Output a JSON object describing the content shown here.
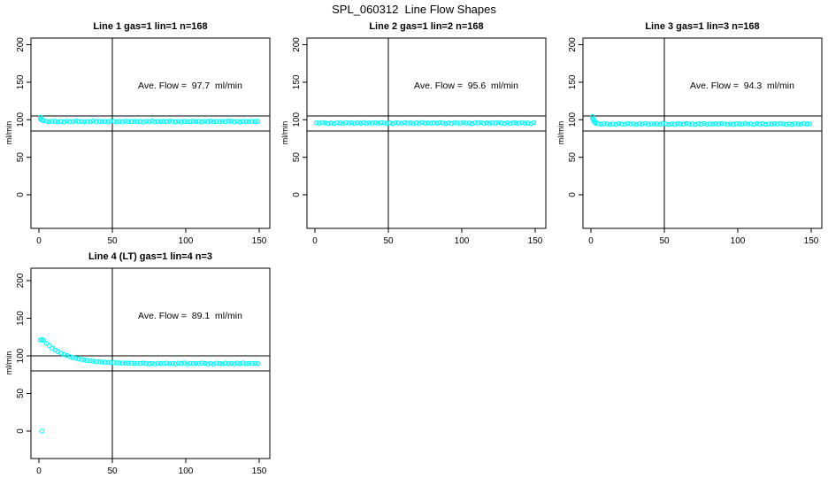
{
  "figure": {
    "title": "SPL_060312  Line Flow Shapes",
    "background_color": "#ffffff",
    "point_color": "#00ffff",
    "axis_color": "#000000",
    "marker": "open-circle"
  },
  "chart_data": {
    "type": "scatter",
    "title": "SPL_060312  Line Flow Shapes",
    "xlabel": "",
    "ylabel": "ml/min",
    "xticks": [
      0,
      50,
      100,
      150
    ],
    "yticks": [
      0,
      50,
      100,
      150,
      200
    ],
    "xlim": [
      0,
      155
    ],
    "ylim": [
      0,
      210
    ],
    "grid": false,
    "legend": false,
    "plots": [
      {
        "title": "Line 1 gas=1 lin=1 n=168",
        "annotation": "Ave. Flow =  97.7  ml/min",
        "ave_flow": 97.7,
        "vline_x": 50,
        "hlines": [
          105,
          85
        ],
        "points_head": [
          [
            1,
            103.4
          ],
          [
            1,
            100.9
          ],
          [
            2,
            99.6
          ],
          [
            3,
            98.6
          ]
        ],
        "series": {
          "x0": 5,
          "dx": 2,
          "y": [
            97.9,
            97.4,
            98.2,
            97.7,
            97.1,
            97.8,
            97.0,
            98.0,
            97.6,
            97.3,
            98.2,
            97.5,
            97.8,
            97.0,
            98.1,
            97.4,
            98.3,
            97.2,
            97.8,
            97.5,
            97.9,
            97.4,
            98.2,
            97.7,
            97.1,
            97.8,
            97.0,
            98.0,
            97.6,
            97.3,
            98.2,
            97.5,
            97.8,
            97.0,
            98.1,
            97.4,
            98.3,
            97.2,
            97.8,
            97.5,
            97.9,
            97.4,
            98.2,
            97.7,
            97.1,
            97.8,
            97.0,
            98.0,
            97.6,
            97.3,
            98.2,
            97.5,
            97.8,
            97.0,
            98.1,
            97.4,
            98.3,
            97.2,
            97.8,
            97.5,
            97.9,
            97.4,
            98.2,
            97.7,
            97.1,
            97.8,
            97.0,
            98.0,
            97.6,
            97.3,
            98.2,
            97.5,
            97.8
          ]
        }
      },
      {
        "title": "Line 2 gas=1 lin=2 n=168",
        "annotation": "Ave. Flow =  95.6  ml/min",
        "ave_flow": 95.6,
        "vline_x": 50,
        "hlines": [
          105,
          85
        ],
        "points_head": [],
        "series": {
          "x0": 1,
          "dx": 2,
          "y": [
            95.9,
            95.4,
            96.2,
            95.7,
            95.1,
            95.8,
            95.0,
            96.0,
            95.6,
            95.3,
            96.2,
            95.5,
            95.8,
            95.0,
            96.1,
            95.4,
            96.3,
            95.2,
            95.8,
            95.5,
            95.9,
            95.4,
            96.2,
            95.7,
            95.1,
            95.8,
            95.0,
            96.0,
            95.6,
            95.3,
            96.2,
            95.5,
            95.8,
            95.0,
            96.1,
            95.4,
            96.3,
            95.2,
            95.8,
            95.5,
            95.9,
            95.4,
            96.2,
            95.7,
            95.1,
            95.8,
            95.0,
            96.0,
            95.6,
            95.3,
            96.2,
            95.5,
            95.8,
            95.0,
            96.1,
            95.4,
            96.3,
            95.2,
            95.8,
            95.5,
            95.9,
            95.4,
            96.2,
            95.7,
            95.1,
            95.8,
            95.0,
            96.0,
            95.6,
            95.3,
            96.2,
            95.5,
            95.8,
            95.0,
            96.1
          ]
        }
      },
      {
        "title": "Line 3 gas=1 lin=3 n=168",
        "annotation": "Ave. Flow =  94.3  ml/min",
        "ave_flow": 94.3,
        "vline_x": 50,
        "hlines": [
          105,
          85
        ],
        "points_head": [
          [
            1,
            104.2
          ],
          [
            1,
            101.5
          ],
          [
            2,
            99.8
          ],
          [
            2,
            97.6
          ],
          [
            3,
            96.9
          ],
          [
            3,
            95.5
          ]
        ],
        "series": {
          "x0": 5,
          "dx": 2,
          "y": [
            94.6,
            94.1,
            94.9,
            94.4,
            93.8,
            94.5,
            93.7,
            94.7,
            94.3,
            94.0,
            94.9,
            94.2,
            94.5,
            93.7,
            94.8,
            94.1,
            95.0,
            93.9,
            94.5,
            94.2,
            94.6,
            94.1,
            94.9,
            94.4,
            93.8,
            94.5,
            93.7,
            94.7,
            94.3,
            94.0,
            94.9,
            94.2,
            94.5,
            93.7,
            94.8,
            94.1,
            95.0,
            93.9,
            94.5,
            94.2,
            94.6,
            94.1,
            94.9,
            94.4,
            93.8,
            94.5,
            93.7,
            94.7,
            94.3,
            94.0,
            94.9,
            94.2,
            94.5,
            93.7,
            94.8,
            94.1,
            95.0,
            93.9,
            94.5,
            94.2,
            94.6,
            94.1,
            94.9,
            94.4,
            93.8,
            94.5,
            93.7,
            94.7,
            94.3,
            94.0,
            94.9,
            94.2,
            94.5
          ]
        }
      },
      {
        "title": "Line 4 (LT) gas=1 lin=4 n=3",
        "annotation": "Ave. Flow =  89.1  ml/min",
        "ave_flow": 89.1,
        "vline_x": 50,
        "hlines": [
          100,
          80
        ],
        "points_head": [
          [
            1,
            120.9
          ],
          [
            2,
            121.6
          ],
          [
            2,
            0
          ]
        ],
        "series": {
          "x0": 3,
          "dx": 2,
          "y": [
            120.6,
            116.7,
            113.3,
            110.4,
            107.8,
            105.5,
            103.5,
            101.8,
            100.3,
            98.9,
            97.8,
            96.8,
            95.9,
            95.1,
            94.4,
            93.8,
            93.3,
            92.8,
            92.4,
            92.1,
            91.8,
            91.5,
            91.3,
            91.1,
            90.9,
            90.7,
            90.6,
            90.5,
            90.4,
            90.3,
            90.2,
            90.1,
            90.1,
            89.6,
            90.4,
            89.9,
            89.3,
            90.0,
            89.2,
            90.2,
            89.8,
            89.5,
            90.4,
            89.7,
            90.0,
            89.2,
            90.3,
            89.6,
            90.5,
            89.4,
            90.0,
            89.7,
            90.1,
            89.6,
            90.4,
            89.9,
            89.3,
            90.0,
            89.2,
            90.2,
            89.8,
            89.5,
            90.4,
            89.7,
            90.0,
            89.2,
            90.3,
            89.6,
            90.5,
            89.4,
            90.0,
            89.7,
            90.1,
            89.6
          ]
        }
      }
    ]
  }
}
